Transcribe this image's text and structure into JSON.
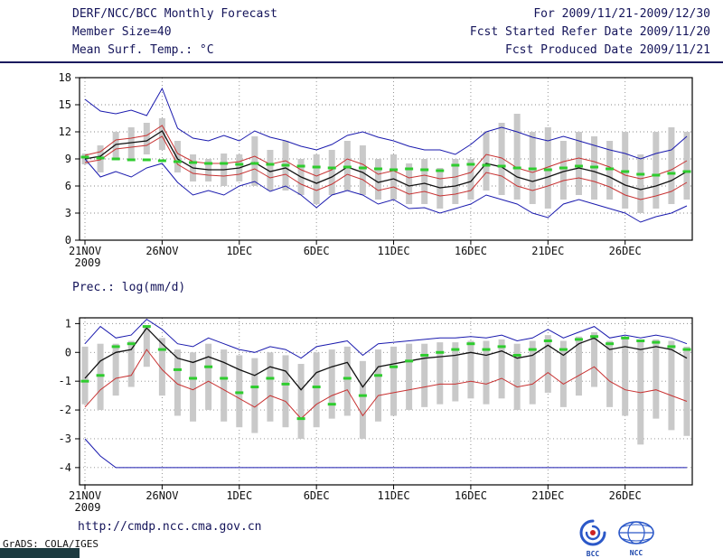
{
  "header": {
    "title": "DERF/NCC/BCC Monthly Forecast",
    "member_size": "Member Size=40",
    "forecast_range": "For 2009/11/21-2009/12/30",
    "refer_date": "Fcst Started Refer Date 2009/11/20",
    "produced_date": "Fcst Produced Date 2009/11/21"
  },
  "footer": {
    "url": "http://cmdp.ncc.cma.gov.cn",
    "grads_credit": "GrADS: COLA/IGES",
    "bcc_label": "BCC",
    "ncc_label": "NCC"
  },
  "colors": {
    "envelope_blue": "#1a1aae",
    "quartile_red": "#c83232",
    "mean_black": "#101010",
    "marker_green": "#2ecc2e",
    "bar_gray": "#c9c9c9"
  },
  "chart_data": [
    {
      "type": "line",
      "title": "Mean Surf. Temp.: °C",
      "ylim": [
        0,
        18
      ],
      "yticks": [
        0,
        3,
        6,
        9,
        12,
        15,
        18
      ],
      "x_count": 40,
      "xticks": [
        {
          "pos": 0,
          "label": "21NOV",
          "sublabel": "2009"
        },
        {
          "pos": 5,
          "label": "26NOV"
        },
        {
          "pos": 10,
          "label": "1DEC"
        },
        {
          "pos": 15,
          "label": "6DEC"
        },
        {
          "pos": 20,
          "label": "11DEC"
        },
        {
          "pos": 25,
          "label": "16DEC"
        },
        {
          "pos": 30,
          "label": "21DEC"
        },
        {
          "pos": 35,
          "label": "26DEC"
        }
      ],
      "bars": {
        "color": "#c9c9c9",
        "high": [
          9.6,
          10.5,
          12.0,
          12.5,
          13.0,
          13.5,
          11.0,
          9.5,
          9.0,
          9.6,
          9.5,
          11.5,
          10.0,
          11.0,
          9.0,
          9.5,
          10.0,
          11.0,
          10.5,
          9.0,
          9.5,
          8.5,
          9.0,
          8.0,
          9.0,
          9.0,
          12.0,
          13.0,
          14.0,
          12.0,
          12.5,
          11.0,
          12.0,
          11.5,
          11.0,
          12.0,
          9.5,
          12.0,
          12.5,
          12.0
        ],
        "low": [
          8.4,
          7.5,
          9.0,
          9.0,
          9.5,
          10.0,
          7.5,
          6.5,
          6.5,
          6.0,
          6.5,
          6.0,
          5.5,
          5.5,
          5.0,
          4.0,
          5.0,
          5.5,
          5.0,
          4.5,
          4.5,
          4.0,
          4.0,
          3.5,
          4.0,
          4.5,
          5.5,
          5.0,
          4.5,
          4.0,
          3.5,
          4.5,
          5.0,
          4.5,
          4.5,
          3.5,
          3.0,
          3.5,
          4.0,
          4.5
        ]
      },
      "series": [
        {
          "name": "ensemble-max",
          "color": "#1a1aae",
          "width": 1,
          "values": [
            15.6,
            14.3,
            14.0,
            14.4,
            13.8,
            16.8,
            12.4,
            11.3,
            11.0,
            11.6,
            11.0,
            12.1,
            11.4,
            11.0,
            10.4,
            10.0,
            10.6,
            11.6,
            12.0,
            11.4,
            11.0,
            10.4,
            10.0,
            10.0,
            9.5,
            10.6,
            12.0,
            12.5,
            12.0,
            11.4,
            11.0,
            11.5,
            11.0,
            10.5,
            10.0,
            9.6,
            9.0,
            9.6,
            10.0,
            11.5
          ]
        },
        {
          "name": "ensemble-min",
          "color": "#1a1aae",
          "width": 1,
          "values": [
            9.0,
            7.0,
            7.6,
            7.0,
            8.0,
            8.5,
            6.4,
            5.0,
            5.5,
            5.0,
            6.0,
            6.5,
            5.4,
            6.0,
            5.0,
            3.6,
            5.0,
            5.5,
            5.0,
            4.0,
            4.5,
            3.5,
            3.6,
            3.0,
            3.5,
            4.0,
            5.0,
            4.5,
            4.0,
            3.0,
            2.5,
            4.0,
            4.5,
            4.0,
            3.5,
            3.0,
            2.0,
            2.6,
            3.0,
            3.8
          ]
        },
        {
          "name": "upper-quartile",
          "color": "#c83232",
          "width": 1,
          "values": [
            9.4,
            9.8,
            11.1,
            11.3,
            11.6,
            12.7,
            9.6,
            8.7,
            8.5,
            8.5,
            8.7,
            9.3,
            8.4,
            8.8,
            7.8,
            7.1,
            7.8,
            9.0,
            8.4,
            7.3,
            7.7,
            6.9,
            7.2,
            6.8,
            7.0,
            7.5,
            9.5,
            9.1,
            8.0,
            7.5,
            8.1,
            8.7,
            9.1,
            8.7,
            8.1,
            7.2,
            6.8,
            7.2,
            7.8,
            8.8
          ]
        },
        {
          "name": "lower-quartile",
          "color": "#c83232",
          "width": 1,
          "values": [
            8.6,
            8.9,
            10.1,
            10.3,
            10.5,
            11.5,
            8.4,
            7.4,
            7.2,
            7.1,
            7.3,
            7.9,
            6.9,
            7.3,
            6.2,
            5.5,
            6.2,
            7.3,
            6.7,
            5.5,
            5.9,
            5.1,
            5.4,
            4.9,
            5.1,
            5.5,
            7.5,
            7.1,
            6.0,
            5.5,
            6.0,
            6.6,
            6.9,
            6.5,
            5.9,
            5.0,
            4.5,
            4.9,
            5.4,
            6.4
          ]
        },
        {
          "name": "ensemble-mean",
          "color": "#101010",
          "width": 1.3,
          "values": [
            9.0,
            9.3,
            10.6,
            10.8,
            11.0,
            12.1,
            9.0,
            8.0,
            7.8,
            7.8,
            8.0,
            8.6,
            7.6,
            8.0,
            7.0,
            6.3,
            7.0,
            8.1,
            7.5,
            6.4,
            6.8,
            6.0,
            6.3,
            5.8,
            6.0,
            6.5,
            8.5,
            8.1,
            7.0,
            6.5,
            7.0,
            7.6,
            8.0,
            7.6,
            7.0,
            6.1,
            5.6,
            6.0,
            6.6,
            7.6
          ]
        }
      ],
      "markers": {
        "name": "climatology-dash",
        "color": "#2ecc2e",
        "values": [
          9.2,
          9.1,
          9.0,
          8.9,
          8.9,
          8.8,
          8.7,
          8.6,
          8.5,
          8.5,
          8.4,
          8.5,
          8.4,
          8.3,
          8.2,
          8.1,
          8.0,
          8.1,
          8.0,
          7.9,
          7.8,
          7.9,
          7.8,
          7.7,
          8.3,
          8.4,
          8.3,
          8.2,
          8.0,
          7.9,
          7.8,
          8.0,
          8.2,
          8.1,
          7.9,
          7.6,
          7.3,
          7.2,
          7.4,
          7.6
        ]
      }
    },
    {
      "type": "line",
      "title": "Prec.: log(mm/d)",
      "ylim": [
        -4.6,
        1.2
      ],
      "yticks": [
        -4,
        -3,
        -2,
        -1,
        0,
        1
      ],
      "x_count": 40,
      "xticks": [
        {
          "pos": 0,
          "label": "21NOV",
          "sublabel": "2009"
        },
        {
          "pos": 5,
          "label": "26NOV"
        },
        {
          "pos": 10,
          "label": "1DEC"
        },
        {
          "pos": 15,
          "label": "6DEC"
        },
        {
          "pos": 20,
          "label": "11DEC"
        },
        {
          "pos": 25,
          "label": "16DEC"
        },
        {
          "pos": 30,
          "label": "21DEC"
        },
        {
          "pos": 35,
          "label": "26DEC"
        }
      ],
      "bars": {
        "color": "#c9c9c9",
        "high": [
          0.2,
          0.3,
          0.3,
          0.4,
          0.9,
          0.5,
          0.1,
          0.0,
          0.3,
          0.1,
          -0.1,
          -0.2,
          0.0,
          -0.1,
          -0.4,
          0.0,
          0.1,
          0.2,
          -0.3,
          0.1,
          0.2,
          0.3,
          0.3,
          0.35,
          0.35,
          0.4,
          0.4,
          0.45,
          0.3,
          0.4,
          0.6,
          0.4,
          0.55,
          0.7,
          0.4,
          0.5,
          0.4,
          0.45,
          0.4,
          0.2
        ],
        "low": [
          -1.8,
          -2.0,
          -1.5,
          -1.2,
          -0.5,
          -1.5,
          -2.2,
          -2.4,
          -2.0,
          -2.4,
          -2.6,
          -2.8,
          -2.4,
          -2.6,
          -3.0,
          -2.6,
          -2.3,
          -2.2,
          -3.0,
          -2.4,
          -2.2,
          -2.0,
          -1.9,
          -1.8,
          -1.7,
          -1.6,
          -1.8,
          -1.6,
          -2.0,
          -1.8,
          -1.4,
          -1.9,
          -1.5,
          -1.2,
          -1.9,
          -2.2,
          -3.2,
          -2.3,
          -2.7,
          -2.9
        ]
      },
      "series": [
        {
          "name": "ensemble-max",
          "color": "#1a1aae",
          "width": 1,
          "values": [
            0.3,
            0.9,
            0.5,
            0.6,
            1.15,
            0.8,
            0.3,
            0.2,
            0.5,
            0.3,
            0.1,
            0.0,
            0.2,
            0.1,
            -0.2,
            0.2,
            0.3,
            0.4,
            -0.1,
            0.3,
            0.35,
            0.4,
            0.45,
            0.5,
            0.5,
            0.55,
            0.5,
            0.6,
            0.4,
            0.5,
            0.8,
            0.5,
            0.7,
            0.9,
            0.5,
            0.6,
            0.5,
            0.6,
            0.5,
            0.3
          ]
        },
        {
          "name": "ensemble-min",
          "color": "#1a1aae",
          "width": 1,
          "values": [
            -3.0,
            -3.6,
            -4.0,
            -4.0,
            -4.0,
            -4.0,
            -4.0,
            -4.0,
            -4.0,
            -4.0,
            -4.0,
            -4.0,
            -4.0,
            -4.0,
            -4.0,
            -4.0,
            -4.0,
            -4.0,
            -4.0,
            -4.0,
            -4.0,
            -4.0,
            -4.0,
            -4.0,
            -4.0,
            -4.0,
            -4.0,
            -4.0,
            -4.0,
            -4.0,
            -4.0,
            -4.0,
            -4.0,
            -4.0,
            -4.0,
            -4.0,
            -4.0,
            -4.0,
            -4.0,
            -4.0
          ]
        },
        {
          "name": "lower-quartile",
          "color": "#c83232",
          "width": 1,
          "values": [
            -1.9,
            -1.3,
            -0.9,
            -0.8,
            0.1,
            -0.6,
            -1.1,
            -1.3,
            -1.0,
            -1.3,
            -1.6,
            -1.9,
            -1.5,
            -1.7,
            -2.3,
            -1.8,
            -1.5,
            -1.3,
            -2.2,
            -1.5,
            -1.4,
            -1.3,
            -1.2,
            -1.1,
            -1.1,
            -1.0,
            -1.1,
            -0.9,
            -1.2,
            -1.1,
            -0.7,
            -1.1,
            -0.8,
            -0.5,
            -1.0,
            -1.3,
            -1.4,
            -1.3,
            -1.5,
            -1.7
          ]
        },
        {
          "name": "ensemble-mean",
          "color": "#101010",
          "width": 1.3,
          "values": [
            -0.9,
            -0.3,
            0.0,
            0.1,
            0.85,
            0.3,
            -0.2,
            -0.35,
            -0.15,
            -0.35,
            -0.6,
            -0.8,
            -0.5,
            -0.65,
            -1.3,
            -0.7,
            -0.5,
            -0.35,
            -1.2,
            -0.5,
            -0.4,
            -0.3,
            -0.2,
            -0.15,
            -0.1,
            0.0,
            -0.1,
            0.05,
            -0.2,
            -0.1,
            0.25,
            -0.1,
            0.3,
            0.5,
            0.1,
            0.2,
            0.1,
            0.2,
            0.1,
            -0.2
          ]
        }
      ],
      "markers": {
        "name": "climatology-dash",
        "color": "#2ecc2e",
        "values": [
          -1.0,
          -0.8,
          0.2,
          0.3,
          0.9,
          0.1,
          -0.6,
          -0.9,
          -0.5,
          -0.9,
          -1.4,
          -1.2,
          -0.9,
          -1.1,
          -2.3,
          -1.2,
          -1.8,
          -0.9,
          -1.5,
          -0.8,
          -0.5,
          -0.3,
          -0.1,
          0.0,
          0.1,
          0.3,
          0.1,
          0.2,
          -0.1,
          0.1,
          0.4,
          0.1,
          0.45,
          0.55,
          0.3,
          0.5,
          0.4,
          0.35,
          0.2,
          0.1
        ]
      }
    }
  ]
}
